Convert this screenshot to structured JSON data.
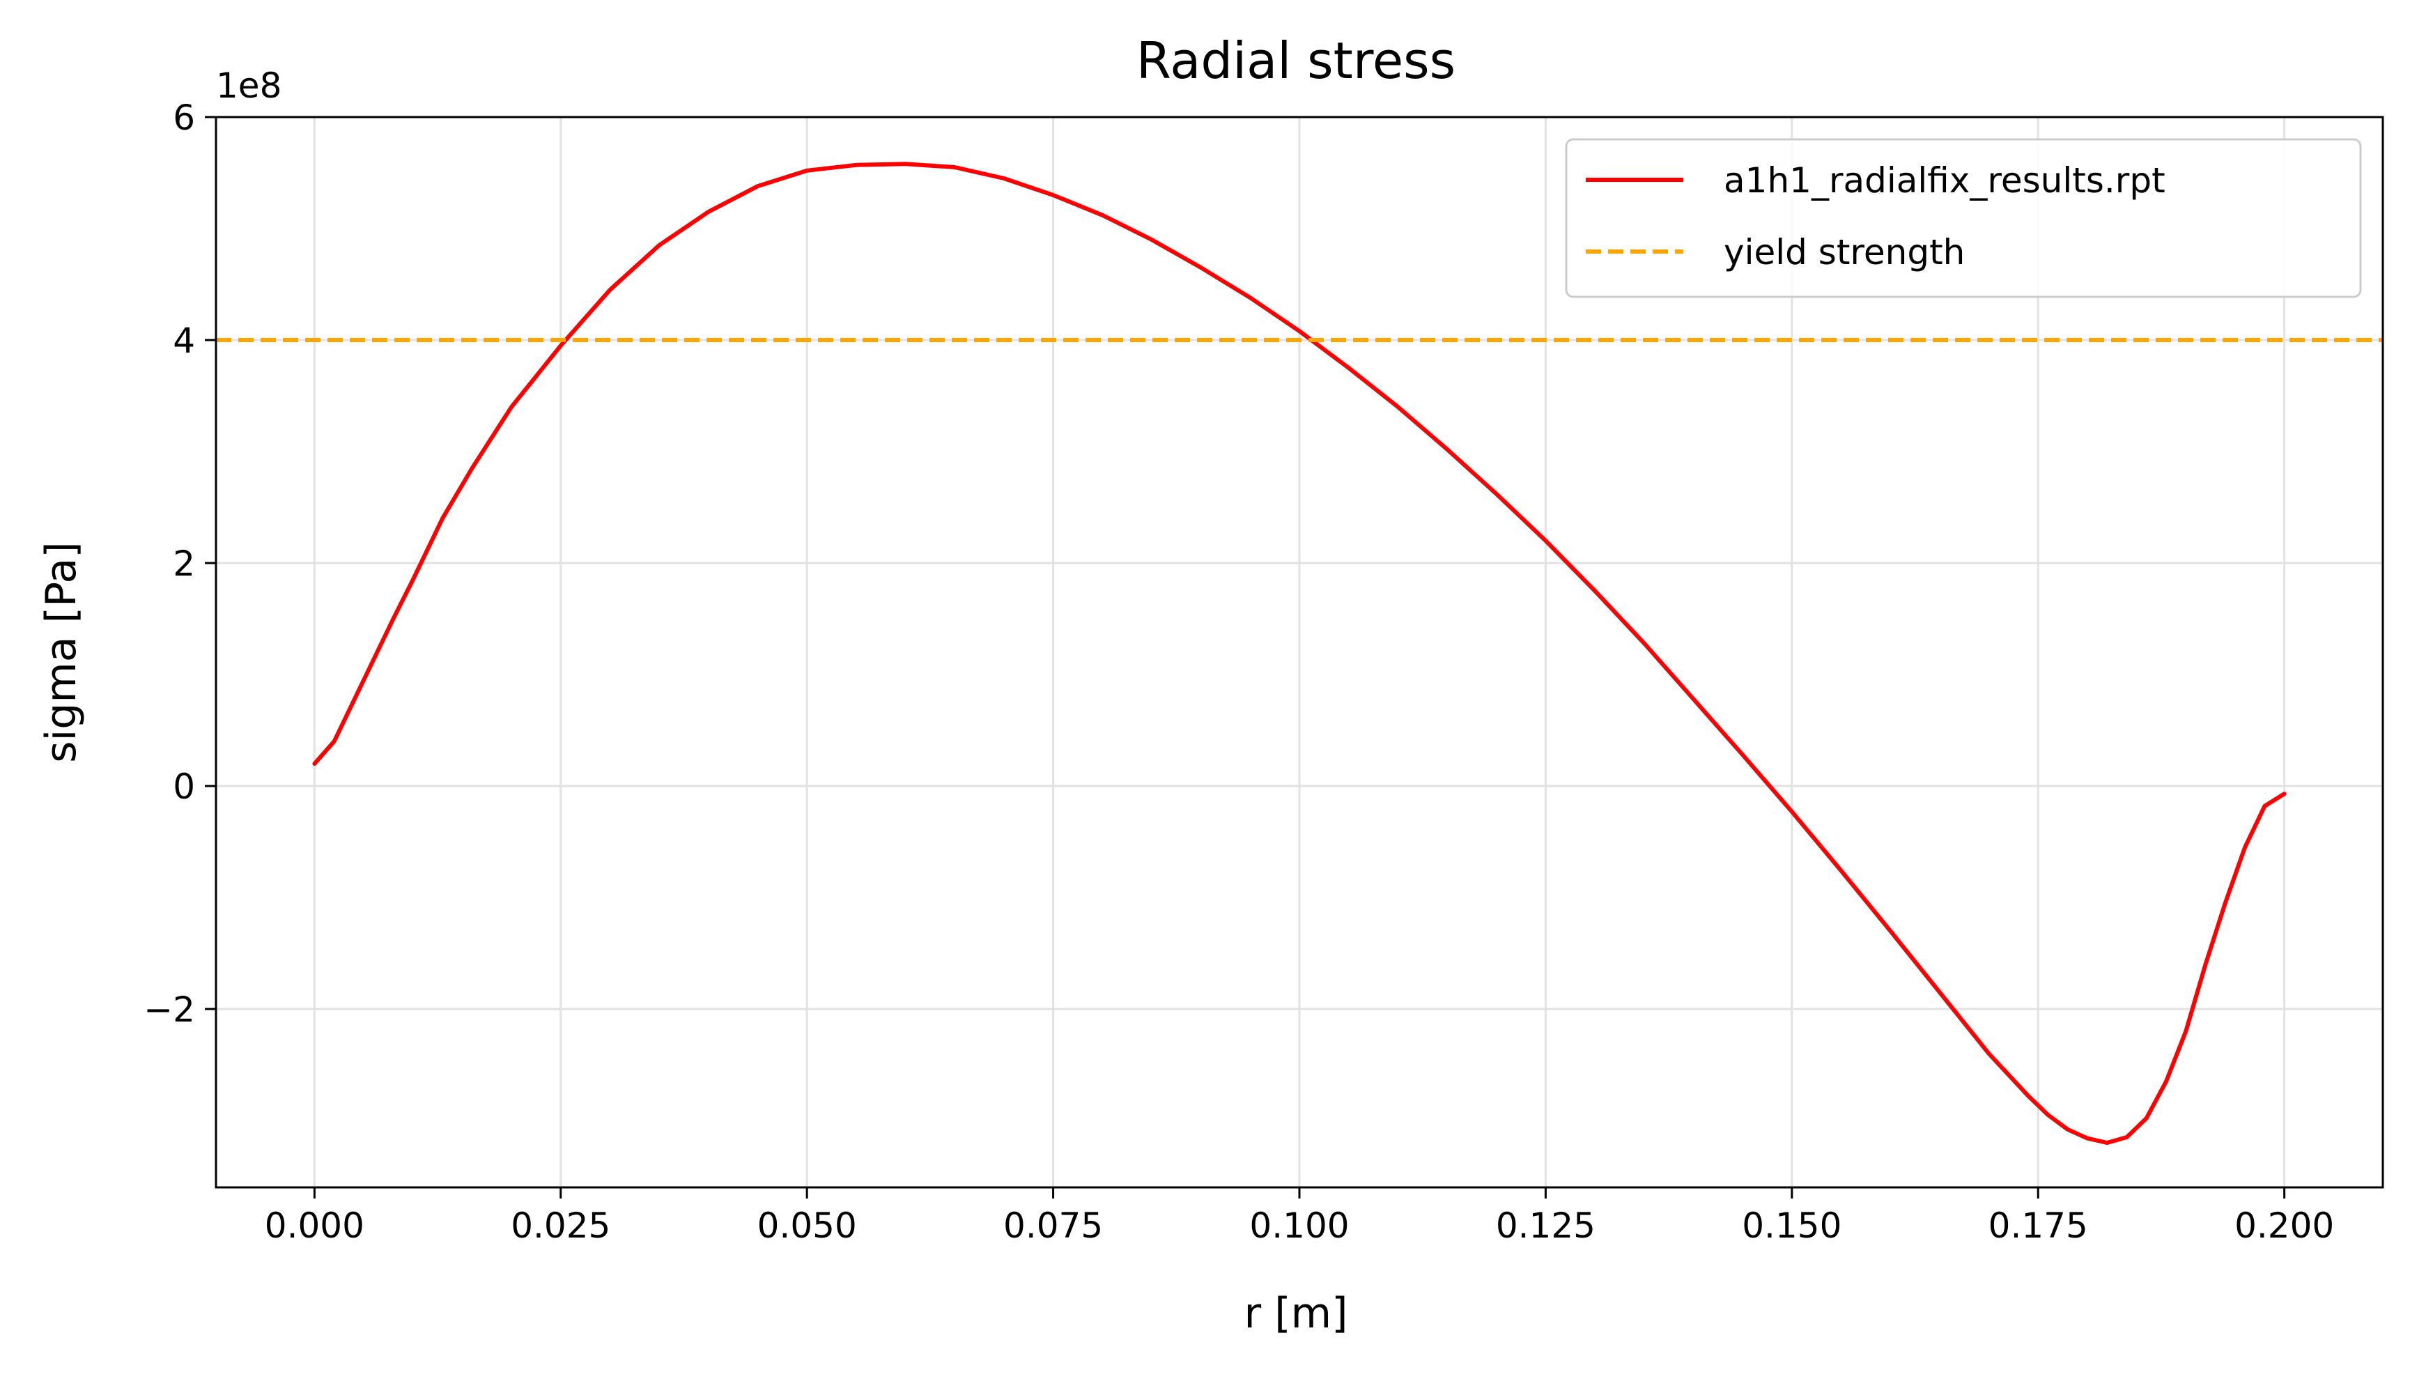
{
  "chart_data": {
    "type": "line",
    "title": "Radial stress",
    "xlabel": "r [m]",
    "ylabel": "sigma [Pa]",
    "y_offset_label": "1e8",
    "y_scale": 100000000,
    "xlim": [
      -0.01,
      0.21
    ],
    "ylim": [
      -3.6,
      6.0
    ],
    "xticks": [
      0.0,
      0.025,
      0.05,
      0.075,
      0.1,
      0.125,
      0.15,
      0.175,
      0.2
    ],
    "xtick_labels": [
      "0.000",
      "0.025",
      "0.050",
      "0.075",
      "0.100",
      "0.125",
      "0.150",
      "0.175",
      "0.200"
    ],
    "yticks": [
      -2,
      0,
      2,
      4,
      6
    ],
    "ytick_labels": [
      "−2",
      "0",
      "2",
      "4",
      "6"
    ],
    "grid": true,
    "legend_position": "top-right",
    "series": [
      {
        "name": "a1h1_radialfix_results.rpt",
        "color": "#ff0000",
        "style": "solid",
        "x": [
          0.0,
          0.002,
          0.005,
          0.008,
          0.01,
          0.013,
          0.016,
          0.02,
          0.025,
          0.03,
          0.035,
          0.04,
          0.045,
          0.05,
          0.055,
          0.06,
          0.065,
          0.07,
          0.075,
          0.08,
          0.085,
          0.09,
          0.095,
          0.1,
          0.105,
          0.11,
          0.115,
          0.12,
          0.125,
          0.13,
          0.135,
          0.14,
          0.145,
          0.15,
          0.155,
          0.16,
          0.165,
          0.17,
          0.174,
          0.176,
          0.178,
          0.18,
          0.182,
          0.184,
          0.186,
          0.188,
          0.19,
          0.192,
          0.194,
          0.196,
          0.198,
          0.2
        ],
        "y": [
          0.2,
          0.4,
          0.95,
          1.5,
          1.85,
          2.4,
          2.85,
          3.4,
          3.95,
          4.45,
          4.85,
          5.15,
          5.38,
          5.52,
          5.57,
          5.58,
          5.55,
          5.45,
          5.3,
          5.12,
          4.9,
          4.65,
          4.38,
          4.08,
          3.75,
          3.4,
          3.02,
          2.62,
          2.2,
          1.75,
          1.28,
          0.78,
          0.28,
          -0.23,
          -0.76,
          -1.3,
          -1.85,
          -2.4,
          -2.78,
          -2.95,
          -3.08,
          -3.16,
          -3.2,
          -3.15,
          -2.98,
          -2.65,
          -2.2,
          -1.6,
          -1.05,
          -0.55,
          -0.18,
          -0.07
        ]
      },
      {
        "name": "yield strength",
        "color": "#ffa500",
        "style": "dashed",
        "x": [
          -0.01,
          0.21
        ],
        "y": [
          4.0,
          4.0
        ]
      }
    ]
  }
}
